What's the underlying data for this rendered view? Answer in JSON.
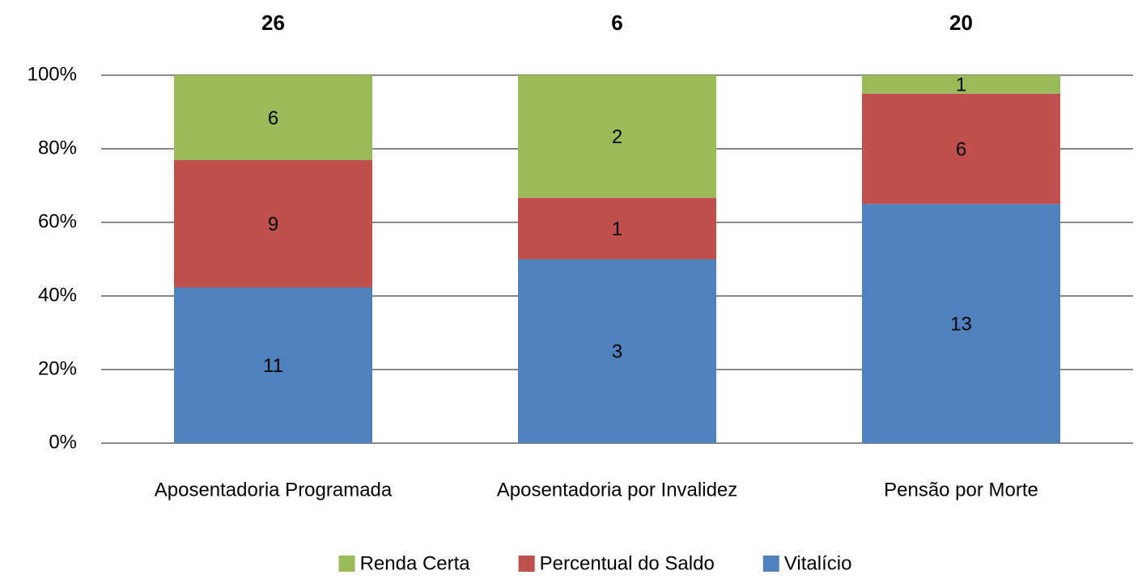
{
  "chart_data": {
    "type": "bar",
    "stacking": "percent",
    "categories": [
      "Aposentadoria Programada",
      "Aposentadoria por Invalidez",
      "Pensão por Morte"
    ],
    "totals": [
      26,
      6,
      20
    ],
    "series": [
      {
        "name": "Vitalício",
        "color": "#4f81bd",
        "values": [
          11,
          3,
          13
        ]
      },
      {
        "name": "Percentual do Saldo",
        "color": "#c0504d",
        "values": [
          9,
          1,
          6
        ]
      },
      {
        "name": "Renda Certa",
        "color": "#9bbb59",
        "values": [
          6,
          2,
          1
        ]
      }
    ],
    "ylim": [
      0,
      100
    ],
    "yticks": [
      {
        "value": 0,
        "label": "0%"
      },
      {
        "value": 20,
        "label": "20%"
      },
      {
        "value": 40,
        "label": "40%"
      },
      {
        "value": 60,
        "label": "60%"
      },
      {
        "value": 80,
        "label": "80%"
      },
      {
        "value": 100,
        "label": "100%"
      }
    ],
    "grid": true,
    "legend": "bottom"
  }
}
